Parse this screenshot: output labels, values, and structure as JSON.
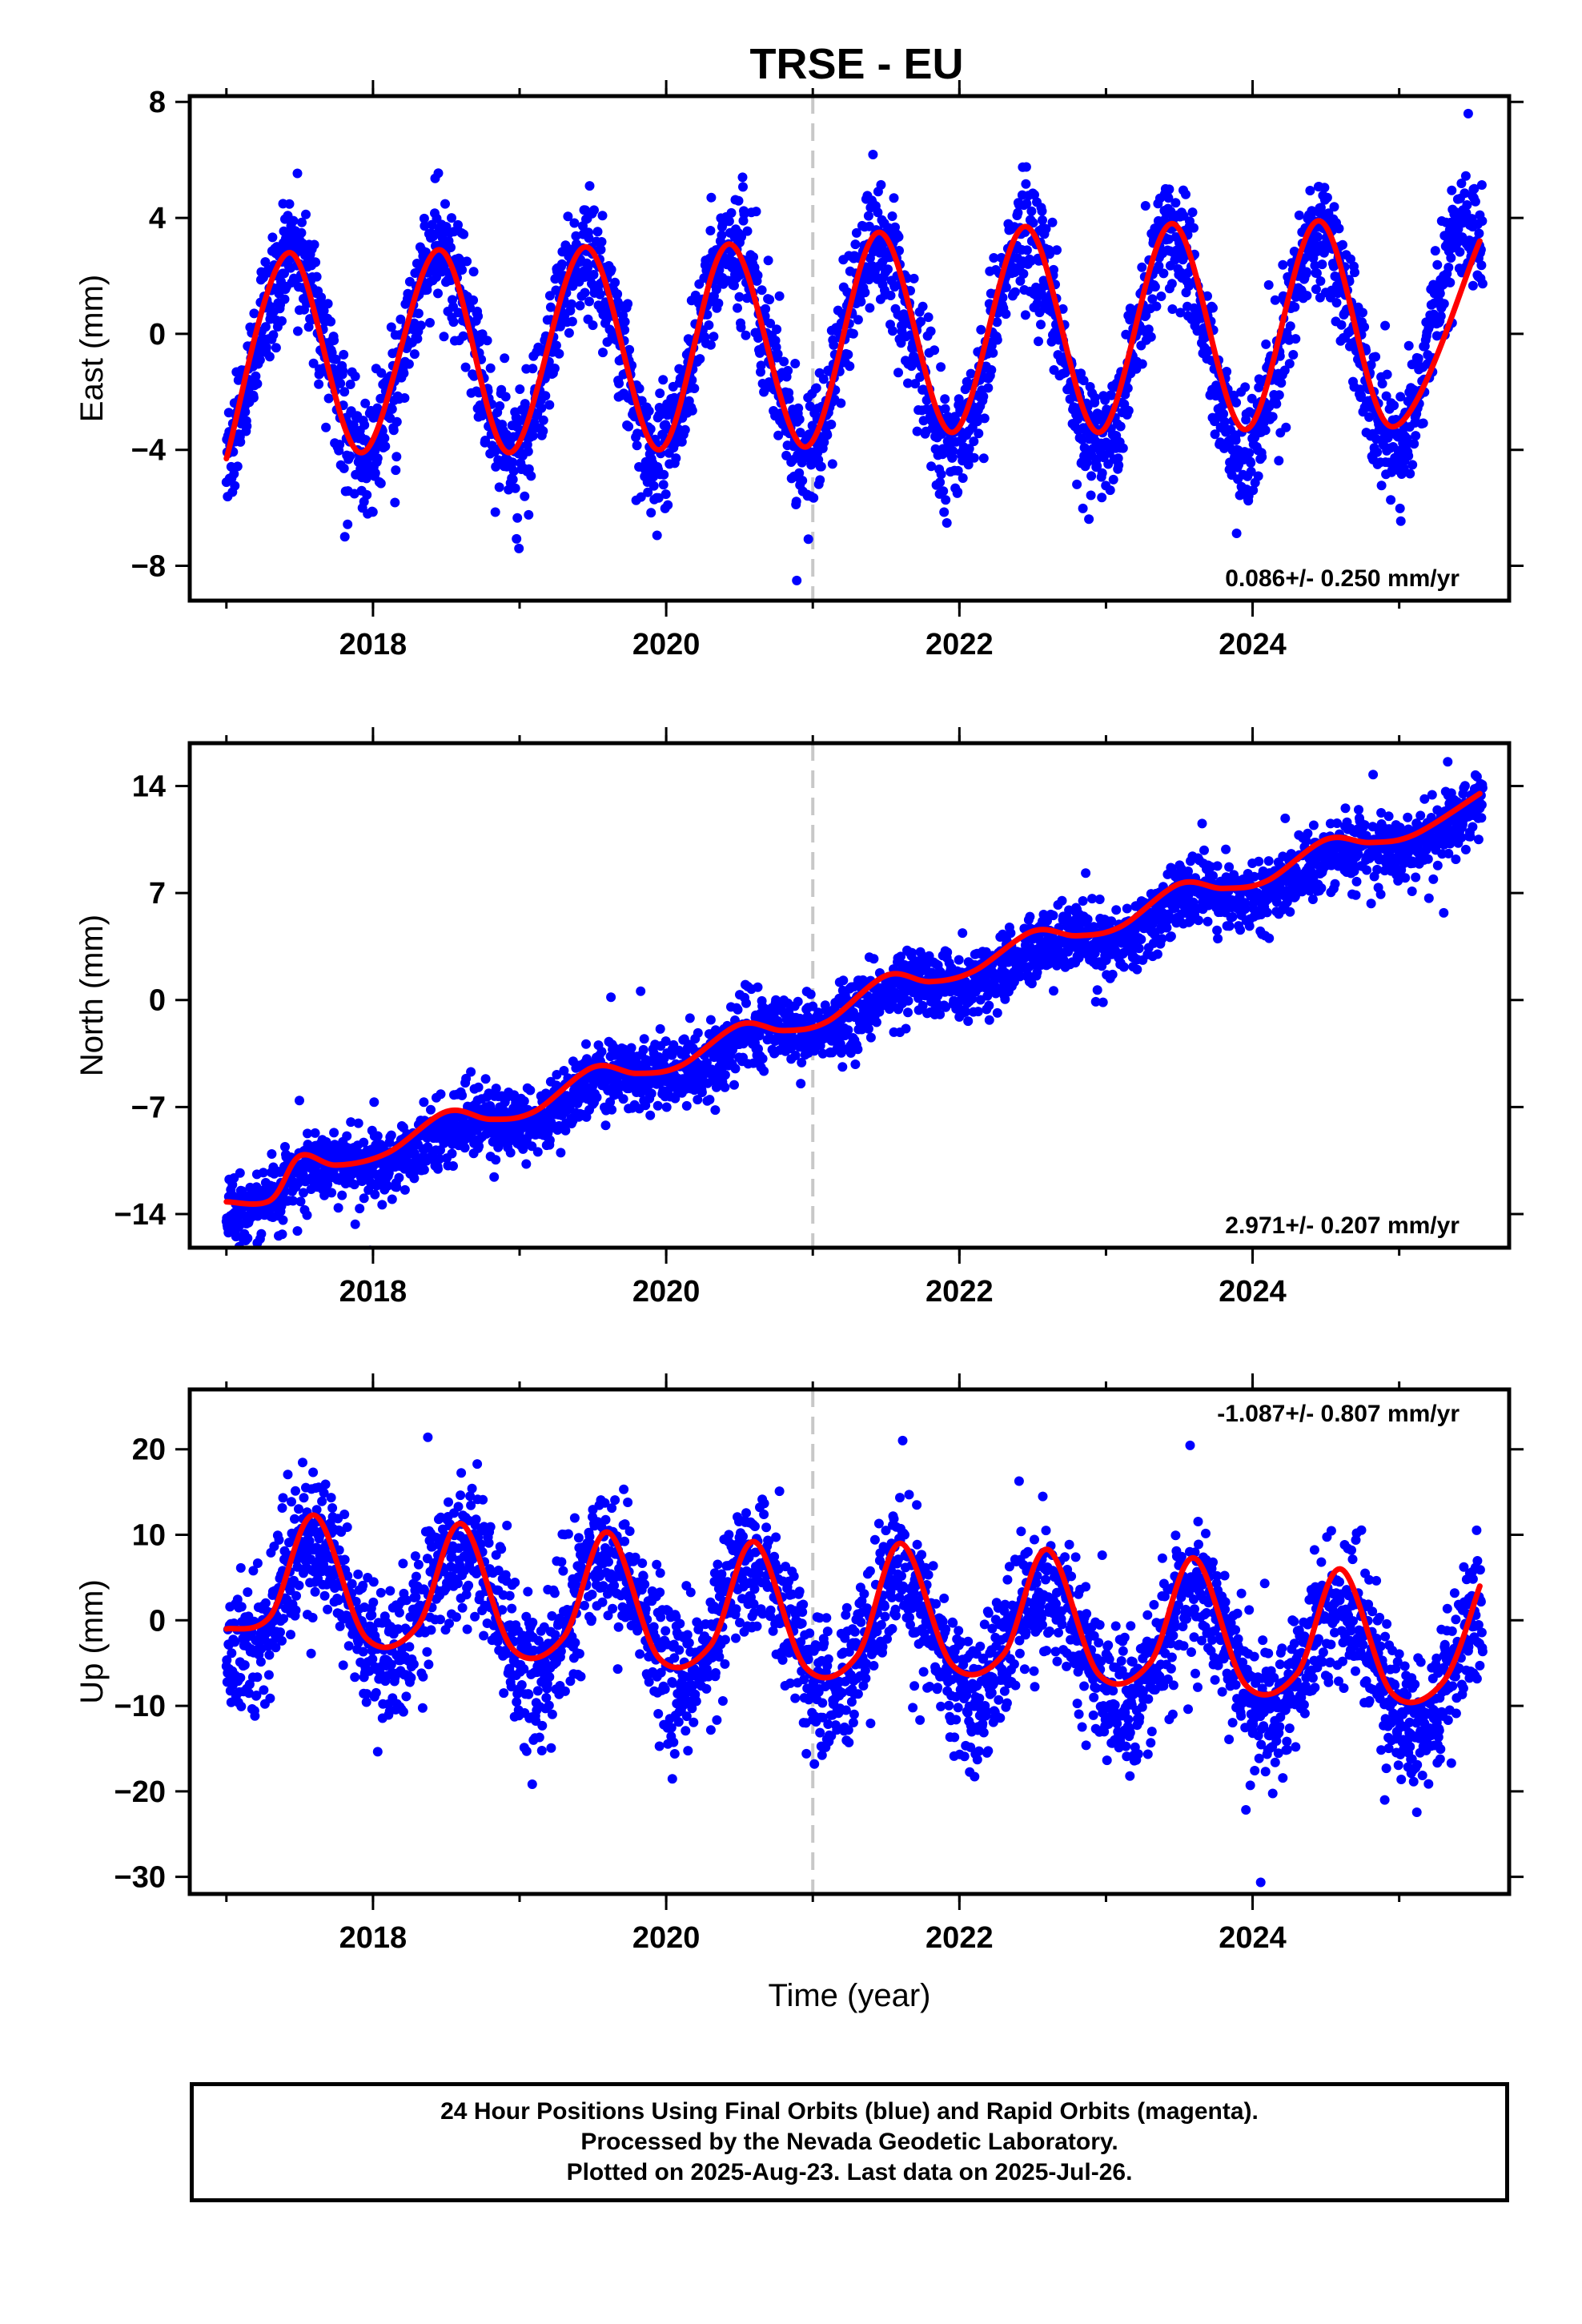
{
  "title": "TRSE - EU",
  "footer": {
    "line1": "24 Hour Positions Using Final Orbits (blue) and Rapid Orbits (magenta).",
    "line2": "Processed by the Nevada Geodetic Laboratory.",
    "line3": "Plotted on 2025-Aug-23. Last data on 2025-Jul-26."
  },
  "colors": {
    "points": "#0000ff",
    "fit": "#ff0000",
    "divider": "#c8c8c8"
  },
  "chart_data": [
    {
      "type": "scatter",
      "ylabel": "East (mm)",
      "xlabel": "",
      "xlim": [
        2016.75,
        2025.75
      ],
      "ylim": [
        -9.2,
        8.2
      ],
      "xticks": [
        "2018",
        "2020",
        "2022",
        "2024"
      ],
      "yticks": [
        "-8",
        "-4",
        "0",
        "4",
        "8"
      ],
      "rate_label": "0.086+/- 0.250 mm/yr",
      "rate_position": "bottom-right",
      "divider_x": 2021.0,
      "model": {
        "trend_mm_per_yr": 0.086,
        "offset": -0.5,
        "annual_amp": 3.4,
        "annual_peak": 0.45,
        "amp_growth": 0.05,
        "noise": 1.0
      },
      "fit": {
        "x": [
          2017.0,
          2017.43,
          2017.92,
          2018.45,
          2018.93,
          2019.45,
          2019.95,
          2020.43,
          2020.95,
          2021.45,
          2021.95,
          2022.45,
          2022.95,
          2023.45,
          2023.95,
          2024.45,
          2024.95,
          2025.55
        ],
        "y": [
          -4.3,
          2.8,
          -4.1,
          2.9,
          -4.1,
          3.0,
          -4.0,
          3.1,
          -3.9,
          3.5,
          -3.4,
          3.7,
          -3.4,
          3.8,
          -3.3,
          3.9,
          -3.2,
          3.2
        ]
      }
    },
    {
      "type": "scatter",
      "ylabel": "North (mm)",
      "xlabel": "",
      "xlim": [
        2016.75,
        2025.75
      ],
      "ylim": [
        -16.2,
        16.8
      ],
      "xticks": [
        "2018",
        "2020",
        "2022",
        "2024"
      ],
      "yticks": [
        "-14",
        "-7",
        "0",
        "7",
        "14"
      ],
      "rate_label": "2.971+/- 0.207 mm/yr",
      "rate_position": "bottom-right",
      "divider_x": 2021.0,
      "model": {
        "trend_mm_per_yr": 2.971,
        "offset": -1.5,
        "annual_amp": 0.7,
        "annual_peak": 0.6,
        "amp_growth": 0.0,
        "noise": 1.1
      },
      "fit": {
        "x": [
          2017.0,
          2017.3,
          2017.5,
          2017.75,
          2018.1,
          2018.5,
          2018.8,
          2019.1,
          2019.5,
          2019.8,
          2020.1,
          2020.5,
          2020.8,
          2021.1,
          2021.5,
          2021.8,
          2022.1,
          2022.5,
          2022.8,
          2023.1,
          2023.5,
          2023.8,
          2024.1,
          2024.5,
          2024.8,
          2025.1,
          2025.55
        ],
        "y": [
          -13.2,
          -13.1,
          -10.2,
          -10.8,
          -10.0,
          -7.3,
          -7.8,
          -7.3,
          -4.4,
          -4.8,
          -4.3,
          -1.6,
          -2.0,
          -1.4,
          1.6,
          1.2,
          1.9,
          4.5,
          4.2,
          4.8,
          7.6,
          7.3,
          7.8,
          10.5,
          10.3,
          10.8,
          13.5
        ]
      }
    },
    {
      "type": "scatter",
      "ylabel": "Up (mm)",
      "xlabel": "Time (year)",
      "xlim": [
        2016.75,
        2025.75
      ],
      "ylim": [
        -32.0,
        27.0
      ],
      "xticks": [
        "2018",
        "2020",
        "2022",
        "2024"
      ],
      "yticks": [
        "-30",
        "-20",
        "-10",
        "0",
        "10",
        "20"
      ],
      "rate_label": "-1.087+/- 0.807 mm/yr",
      "rate_position": "top-right",
      "divider_x": 2021.0,
      "model": {
        "trend_mm_per_yr": -1.087,
        "offset": -1.0,
        "annual_amp": 7.0,
        "annual_peak": 0.6,
        "amp_growth": 0.0,
        "noise": 4.0
      },
      "fit": {
        "x": [
          2017.0,
          2017.3,
          2017.6,
          2017.95,
          2018.3,
          2018.6,
          2018.95,
          2019.3,
          2019.6,
          2019.95,
          2020.3,
          2020.6,
          2020.95,
          2021.3,
          2021.6,
          2021.95,
          2022.3,
          2022.6,
          2022.95,
          2023.3,
          2023.6,
          2023.95,
          2024.3,
          2024.6,
          2024.95,
          2025.3,
          2025.55
        ],
        "y": [
          -1.0,
          0.5,
          12.3,
          -2.0,
          -0.8,
          11.3,
          -3.3,
          -2.0,
          10.3,
          -4.4,
          -3.0,
          9.2,
          -5.5,
          -4.2,
          9.0,
          -5.2,
          -4.0,
          8.3,
          -6.3,
          -5.0,
          7.3,
          -7.5,
          -6.3,
          6.0,
          -8.5,
          -7.2,
          4.0
        ]
      }
    }
  ]
}
